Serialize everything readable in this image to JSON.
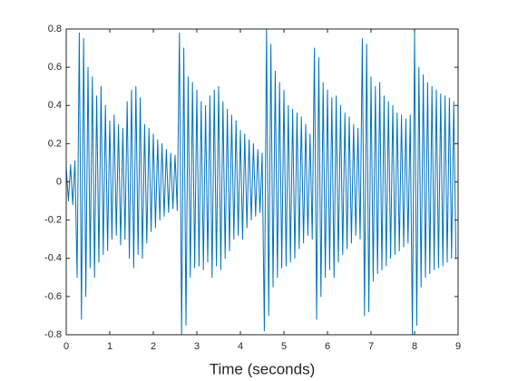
{
  "chart_data": {
    "type": "line",
    "xlabel": "Time (seconds)",
    "color": "#0072bd",
    "xlim": [
      0,
      9
    ],
    "ylim": [
      -0.8,
      0.8
    ],
    "xticks": [
      0,
      1,
      2,
      3,
      4,
      5,
      6,
      7,
      8,
      9
    ],
    "yticks": [
      -0.8,
      -0.6,
      -0.4,
      -0.2,
      0,
      0.2,
      0.4,
      0.6,
      0.8
    ],
    "x": [
      0,
      0.05,
      0.1,
      0.15,
      0.2,
      0.25,
      0.3,
      0.35,
      0.4,
      0.45,
      0.5,
      0.55,
      0.6,
      0.65,
      0.7,
      0.75,
      0.8,
      0.85,
      0.9,
      0.95,
      1,
      1.05,
      1.1,
      1.15,
      1.2,
      1.25,
      1.3,
      1.35,
      1.4,
      1.45,
      1.5,
      1.55,
      1.6,
      1.65,
      1.7,
      1.75,
      1.8,
      1.85,
      1.9,
      1.95,
      2,
      2.05,
      2.1,
      2.15,
      2.2,
      2.25,
      2.3,
      2.35,
      2.4,
      2.45,
      2.5,
      2.55,
      2.6,
      2.65,
      2.7,
      2.75,
      2.8,
      2.85,
      2.9,
      2.95,
      3,
      3.05,
      3.1,
      3.15,
      3.2,
      3.25,
      3.3,
      3.35,
      3.4,
      3.45,
      3.5,
      3.55,
      3.6,
      3.65,
      3.7,
      3.75,
      3.8,
      3.85,
      3.9,
      3.95,
      4,
      4.05,
      4.1,
      4.15,
      4.2,
      4.25,
      4.3,
      4.35,
      4.4,
      4.45,
      4.5,
      4.55,
      4.6,
      4.65,
      4.7,
      4.75,
      4.8,
      4.85,
      4.9,
      4.95,
      5,
      5.05,
      5.1,
      5.15,
      5.2,
      5.25,
      5.3,
      5.35,
      5.4,
      5.45,
      5.5,
      5.55,
      5.6,
      5.65,
      5.7,
      5.75,
      5.8,
      5.85,
      5.9,
      5.95,
      6,
      6.05,
      6.1,
      6.15,
      6.2,
      6.25,
      6.3,
      6.35,
      6.4,
      6.45,
      6.5,
      6.55,
      6.6,
      6.65,
      6.7,
      6.75,
      6.8,
      6.85,
      6.9,
      6.95,
      7,
      7.05,
      7.1,
      7.15,
      7.2,
      7.25,
      7.3,
      7.35,
      7.4,
      7.45,
      7.5,
      7.55,
      7.6,
      7.65,
      7.7,
      7.75,
      7.8,
      7.85,
      7.9,
      7.95,
      8,
      8.05,
      8.1,
      8.15,
      8.2,
      8.25,
      8.3,
      8.35,
      8.4,
      8.45,
      8.5,
      8.55,
      8.6,
      8.65,
      8.7,
      8.75,
      8.8,
      8.85,
      8.9,
      8.95
    ],
    "values": [
      0.08,
      -0.1,
      0.09,
      -0.12,
      0.11,
      -0.5,
      0.78,
      -0.72,
      0.75,
      -0.6,
      0.6,
      -0.45,
      0.55,
      -0.5,
      0.45,
      -0.42,
      0.5,
      -0.38,
      0.4,
      -0.36,
      0.32,
      -0.3,
      0.35,
      -0.28,
      0.3,
      -0.33,
      0.28,
      -0.3,
      0.42,
      -0.4,
      0.48,
      -0.45,
      0.5,
      -0.38,
      0.44,
      -0.4,
      0.3,
      -0.32,
      0.28,
      -0.26,
      0.25,
      -0.24,
      0.22,
      -0.2,
      0.2,
      -0.18,
      0.17,
      -0.16,
      0.15,
      -0.14,
      0.14,
      -0.15,
      0.78,
      -0.8,
      0.7,
      -0.75,
      0.55,
      -0.5,
      0.52,
      -0.45,
      0.48,
      -0.44,
      0.42,
      -0.46,
      0.4,
      -0.42,
      0.45,
      -0.5,
      0.48,
      -0.44,
      0.5,
      -0.46,
      0.42,
      -0.4,
      0.38,
      -0.36,
      0.35,
      -0.3,
      0.32,
      -0.28,
      0.27,
      -0.3,
      0.25,
      -0.24,
      0.22,
      -0.2,
      0.2,
      -0.18,
      0.17,
      -0.16,
      0.15,
      -0.78,
      0.8,
      -0.7,
      0.72,
      -0.55,
      0.58,
      -0.5,
      0.52,
      -0.45,
      0.48,
      -0.44,
      0.4,
      -0.42,
      0.38,
      -0.4,
      0.36,
      -0.35,
      0.34,
      -0.32,
      0.3,
      -0.28,
      0.25,
      -0.3,
      0.7,
      -0.72,
      0.65,
      -0.6,
      0.52,
      -0.5,
      0.48,
      -0.46,
      0.44,
      -0.5,
      0.45,
      -0.42,
      0.4,
      -0.38,
      0.36,
      -0.35,
      0.34,
      -0.32,
      0.3,
      -0.28,
      0.28,
      -0.3,
      0.75,
      -0.7,
      0.72,
      -0.68,
      0.55,
      -0.52,
      0.5,
      -0.48,
      0.52,
      -0.46,
      0.45,
      -0.44,
      0.42,
      -0.4,
      0.4,
      -0.38,
      0.36,
      -0.36,
      0.35,
      -0.34,
      0.33,
      -0.32,
      0.35,
      -0.8,
      0.78,
      -0.75,
      0.6,
      -0.55,
      0.56,
      -0.5,
      0.52,
      -0.48,
      0.5,
      -0.46,
      0.48,
      -0.45,
      0.46,
      -0.44,
      0.45,
      -0.42,
      0.44,
      -0.4,
      0.42,
      -0.4
    ]
  }
}
